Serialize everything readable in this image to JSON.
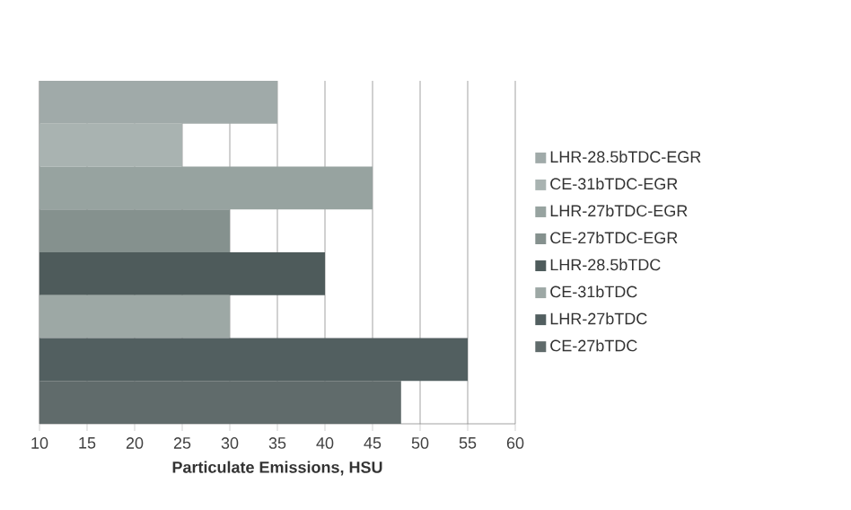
{
  "chart_data": {
    "type": "bar",
    "orientation": "horizontal",
    "xlabel": "Particulate Emissions, HSU",
    "categories": [
      null,
      null,
      null,
      null,
      null,
      null,
      null,
      null
    ],
    "series": [
      {
        "name": "LHR-28.5bTDC-EGR",
        "color": "#a0aaa9",
        "values": [
          35,
          null,
          null,
          null,
          null,
          null,
          null,
          null
        ]
      },
      {
        "name": "CE-31bTDC-EGR",
        "color": "#a9b3b1",
        "values": [
          null,
          25,
          null,
          null,
          null,
          null,
          null,
          null
        ]
      },
      {
        "name": "LHR-27bTDC-EGR",
        "color": "#97a3a0",
        "values": [
          null,
          null,
          45,
          null,
          null,
          null,
          null,
          null
        ]
      },
      {
        "name": "CE-27bTDC-EGR",
        "color": "#85918e",
        "values": [
          null,
          null,
          null,
          30,
          null,
          null,
          null,
          null
        ]
      },
      {
        "name": "LHR-28.5bTDC",
        "color": "#4e5b5b",
        "values": [
          null,
          null,
          null,
          null,
          40,
          null,
          null,
          null
        ]
      },
      {
        "name": "CE-31bTDC",
        "color": "#9da8a5",
        "values": [
          null,
          null,
          null,
          null,
          null,
          30,
          null,
          null
        ]
      },
      {
        "name": "LHR-27bTDC",
        "color": "#525f60",
        "values": [
          null,
          null,
          null,
          null,
          null,
          null,
          55,
          null
        ]
      },
      {
        "name": "CE-27bTDC",
        "color": "#606b6b",
        "values": [
          null,
          null,
          null,
          null,
          null,
          null,
          null,
          48
        ]
      }
    ],
    "xlim": [
      10,
      60
    ],
    "xticks": [
      10,
      15,
      20,
      25,
      30,
      35,
      40,
      45,
      50,
      55,
      60
    ],
    "grid": "x",
    "legend": "right"
  }
}
